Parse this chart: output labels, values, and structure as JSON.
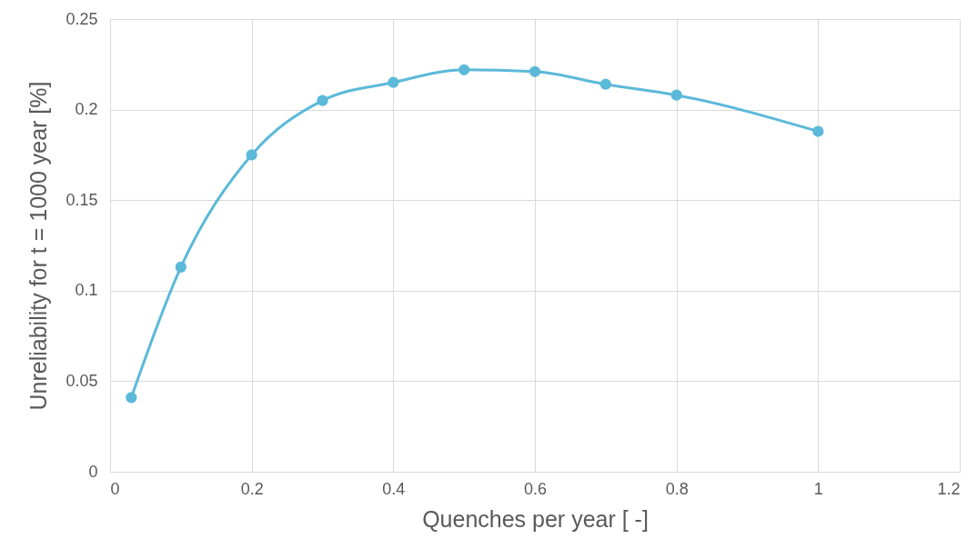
{
  "chart_data": {
    "type": "line",
    "xlabel": "Quenches per year [ -]",
    "ylabel": "Unreliability for t = 1000 year [%]",
    "x": [
      0.03,
      0.1,
      0.2,
      0.3,
      0.4,
      0.5,
      0.6,
      0.7,
      0.8,
      1.0
    ],
    "series": [
      {
        "color": "#5bb9d9",
        "values": [
          0.041,
          0.113,
          0.175,
          0.205,
          0.215,
          0.222,
          0.221,
          0.214,
          0.208,
          0.188
        ]
      }
    ],
    "xlim": [
      0,
      1.2
    ],
    "xticks": [
      0,
      0.2,
      0.4,
      0.6,
      0.8,
      1,
      1.2
    ],
    "ylim": [
      0,
      0.25
    ],
    "yticks": [
      0,
      0.05,
      0.1,
      0.15,
      0.2,
      0.25
    ],
    "grid": true,
    "marker": "circle",
    "line_style": "solid"
  }
}
